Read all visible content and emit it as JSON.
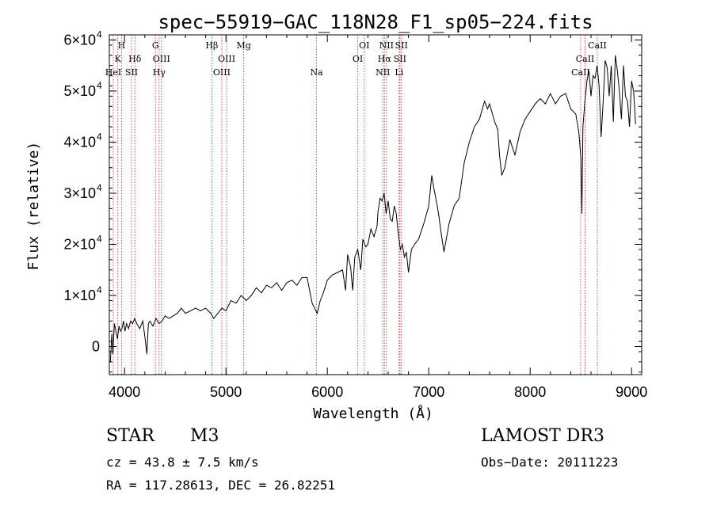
{
  "chart_data": {
    "type": "line",
    "title": "spec−55919−GAC_118N28_F1_sp05−224.fits",
    "xlabel": "Wavelength (Å)",
    "ylabel": "Flux (relative)",
    "xlim": [
      3850,
      9100
    ],
    "ylim": [
      -5500,
      61000
    ],
    "x_ticks": [
      {
        "value": 4000,
        "label": "4000"
      },
      {
        "value": 5000,
        "label": "5000"
      },
      {
        "value": 6000,
        "label": "6000"
      },
      {
        "value": 7000,
        "label": "7000"
      },
      {
        "value": 8000,
        "label": "8000"
      },
      {
        "value": 9000,
        "label": "9000"
      }
    ],
    "y_ticks": [
      {
        "value": 0,
        "label": "0",
        "mantissa": ""
      },
      {
        "value": 10000,
        "label": "1×10",
        "mantissa": "4"
      },
      {
        "value": 20000,
        "label": "2×10",
        "mantissa": "4"
      },
      {
        "value": 30000,
        "label": "3×10",
        "mantissa": "4"
      },
      {
        "value": 40000,
        "label": "4×10",
        "mantissa": "4"
      },
      {
        "value": 50000,
        "label": "5×10",
        "mantissa": "4"
      },
      {
        "value": 60000,
        "label": "6×10",
        "mantissa": "4"
      }
    ],
    "line_color": "#000000",
    "marker_color": "#cc2222",
    "spectral_lines": [
      {
        "label": "H",
        "wavelength": 3970,
        "row": 0
      },
      {
        "label": "K",
        "wavelength": 3934,
        "row": 1
      },
      {
        "label": "HeI",
        "wavelength": 3889,
        "row": 2
      },
      {
        "label": "SII",
        "wavelength": 4069,
        "row": 2
      },
      {
        "label": "Hδ",
        "wavelength": 4102,
        "row": 1
      },
      {
        "label": "G",
        "wavelength": 4305,
        "row": 0
      },
      {
        "label": "OIII",
        "wavelength": 4364,
        "row": 1
      },
      {
        "label": "Hγ",
        "wavelength": 4341,
        "row": 2
      },
      {
        "label": "Hβ",
        "wavelength": 4861,
        "row": 0
      },
      {
        "label": "OIII",
        "wavelength": 4959,
        "row": 2
      },
      {
        "label": "OIII",
        "wavelength": 5007,
        "row": 1
      },
      {
        "label": "Mg",
        "wavelength": 5175,
        "row": 0
      },
      {
        "label": "Na",
        "wavelength": 5894,
        "row": 2
      },
      {
        "label": "OI",
        "wavelength": 6300,
        "row": 1
      },
      {
        "label": "OI",
        "wavelength": 6364,
        "row": 0
      },
      {
        "label": "NII",
        "wavelength": 6548,
        "row": 2
      },
      {
        "label": "NII",
        "wavelength": 6583,
        "row": 0
      },
      {
        "label": "Hα",
        "wavelength": 6563,
        "row": 1
      },
      {
        "label": "SII",
        "wavelength": 6716,
        "row": 1
      },
      {
        "label": "SII",
        "wavelength": 6731,
        "row": 0
      },
      {
        "label": "Li",
        "wavelength": 6708,
        "row": 2
      },
      {
        "label": "CaII",
        "wavelength": 8498,
        "row": 2
      },
      {
        "label": "CaII",
        "wavelength": 8542,
        "row": 1
      },
      {
        "label": "CaII",
        "wavelength": 8662,
        "row": 0
      }
    ],
    "series": [
      {
        "x": [
          3860,
          3875,
          3885,
          3900,
          3915,
          3930,
          3945,
          3960,
          3975,
          3990,
          4005,
          4020,
          4040,
          4060,
          4080,
          4100,
          4120,
          4150,
          4180,
          4200,
          4220,
          4235,
          4250,
          4280,
          4310,
          4340,
          4370,
          4400,
          4440,
          4480,
          4520,
          4560,
          4600,
          4650,
          4700,
          4750,
          4800,
          4850,
          4880,
          4920,
          4960,
          5000,
          5050,
          5100,
          5150,
          5200,
          5250,
          5300,
          5350,
          5400,
          5450,
          5500,
          5550,
          5600,
          5650,
          5700,
          5750,
          5800,
          5850,
          5900,
          5930,
          5960,
          6000,
          6050,
          6100,
          6150,
          6180,
          6200,
          6230,
          6250,
          6270,
          6300,
          6330,
          6350,
          6380,
          6400,
          6430,
          6460,
          6490,
          6500,
          6520,
          6540,
          6560,
          6580,
          6600,
          6620,
          6640,
          6660,
          6680,
          6700,
          6720,
          6740,
          6760,
          6780,
          6800,
          6830,
          6860,
          6900,
          6950,
          7000,
          7030,
          7050,
          7080,
          7100,
          7120,
          7150,
          7200,
          7250,
          7300,
          7350,
          7400,
          7450,
          7500,
          7550,
          7580,
          7600,
          7650,
          7680,
          7700,
          7720,
          7750,
          7800,
          7850,
          7900,
          7950,
          8000,
          8050,
          8100,
          8150,
          8200,
          8250,
          8300,
          8350,
          8400,
          8450,
          8480,
          8500,
          8510,
          8520,
          8540,
          8560,
          8580,
          8600,
          8620,
          8640,
          8660,
          8680,
          8700,
          8720,
          8740,
          8760,
          8780,
          8800,
          8820,
          8840,
          8860,
          8880,
          8900,
          8920,
          8940,
          8960,
          8980,
          9000,
          9020,
          9040
        ],
        "y": [
          -3000,
          2500,
          -1500,
          4500,
          3000,
          1500,
          4000,
          3000,
          3500,
          5000,
          3000,
          4500,
          3500,
          5000,
          4500,
          5500,
          4500,
          3500,
          5000,
          2000,
          -1500,
          4500,
          5000,
          4000,
          5500,
          4500,
          5000,
          6000,
          5500,
          6000,
          6500,
          7500,
          6500,
          7000,
          7500,
          7000,
          7500,
          6500,
          5500,
          6500,
          7500,
          7000,
          9000,
          8500,
          10000,
          9000,
          10000,
          11500,
          10500,
          12000,
          11500,
          12500,
          11000,
          12500,
          13000,
          12000,
          13500,
          13500,
          8500,
          6500,
          9000,
          10500,
          13000,
          14000,
          14500,
          15000,
          11000,
          18000,
          15500,
          11000,
          17500,
          19000,
          15000,
          21000,
          19500,
          20000,
          23000,
          21500,
          23500,
          26500,
          29000,
          28500,
          30000,
          26000,
          28500,
          25000,
          24500,
          27500,
          26000,
          22000,
          19000,
          20000,
          17500,
          18500,
          14500,
          19000,
          20000,
          21000,
          24000,
          27500,
          33500,
          31000,
          28000,
          25500,
          22500,
          18500,
          24000,
          27500,
          29000,
          36000,
          40000,
          43000,
          44500,
          48000,
          46500,
          47500,
          44000,
          42500,
          37000,
          33500,
          35000,
          40500,
          37500,
          42000,
          44500,
          46000,
          47500,
          48500,
          47500,
          49500,
          47500,
          49000,
          49500,
          46500,
          45500,
          42000,
          37000,
          26000,
          43000,
          48000,
          52000,
          54000,
          49000,
          53000,
          52500,
          55000,
          51000,
          41000,
          48000,
          56000,
          54500,
          49000,
          55000,
          44000,
          57000,
          54000,
          50000,
          44500,
          55000,
          49000,
          48000,
          43000,
          52000,
          50000,
          43500
        ]
      }
    ]
  },
  "info": {
    "class": "STAR",
    "subclass": "M3",
    "survey": "LAMOST DR3",
    "cz": "cz = 43.8 ± 7.5 km/s",
    "obs_date": "Obs−Date: 20111223",
    "radec": "RA = 117.28613, DEC =  26.82251"
  }
}
